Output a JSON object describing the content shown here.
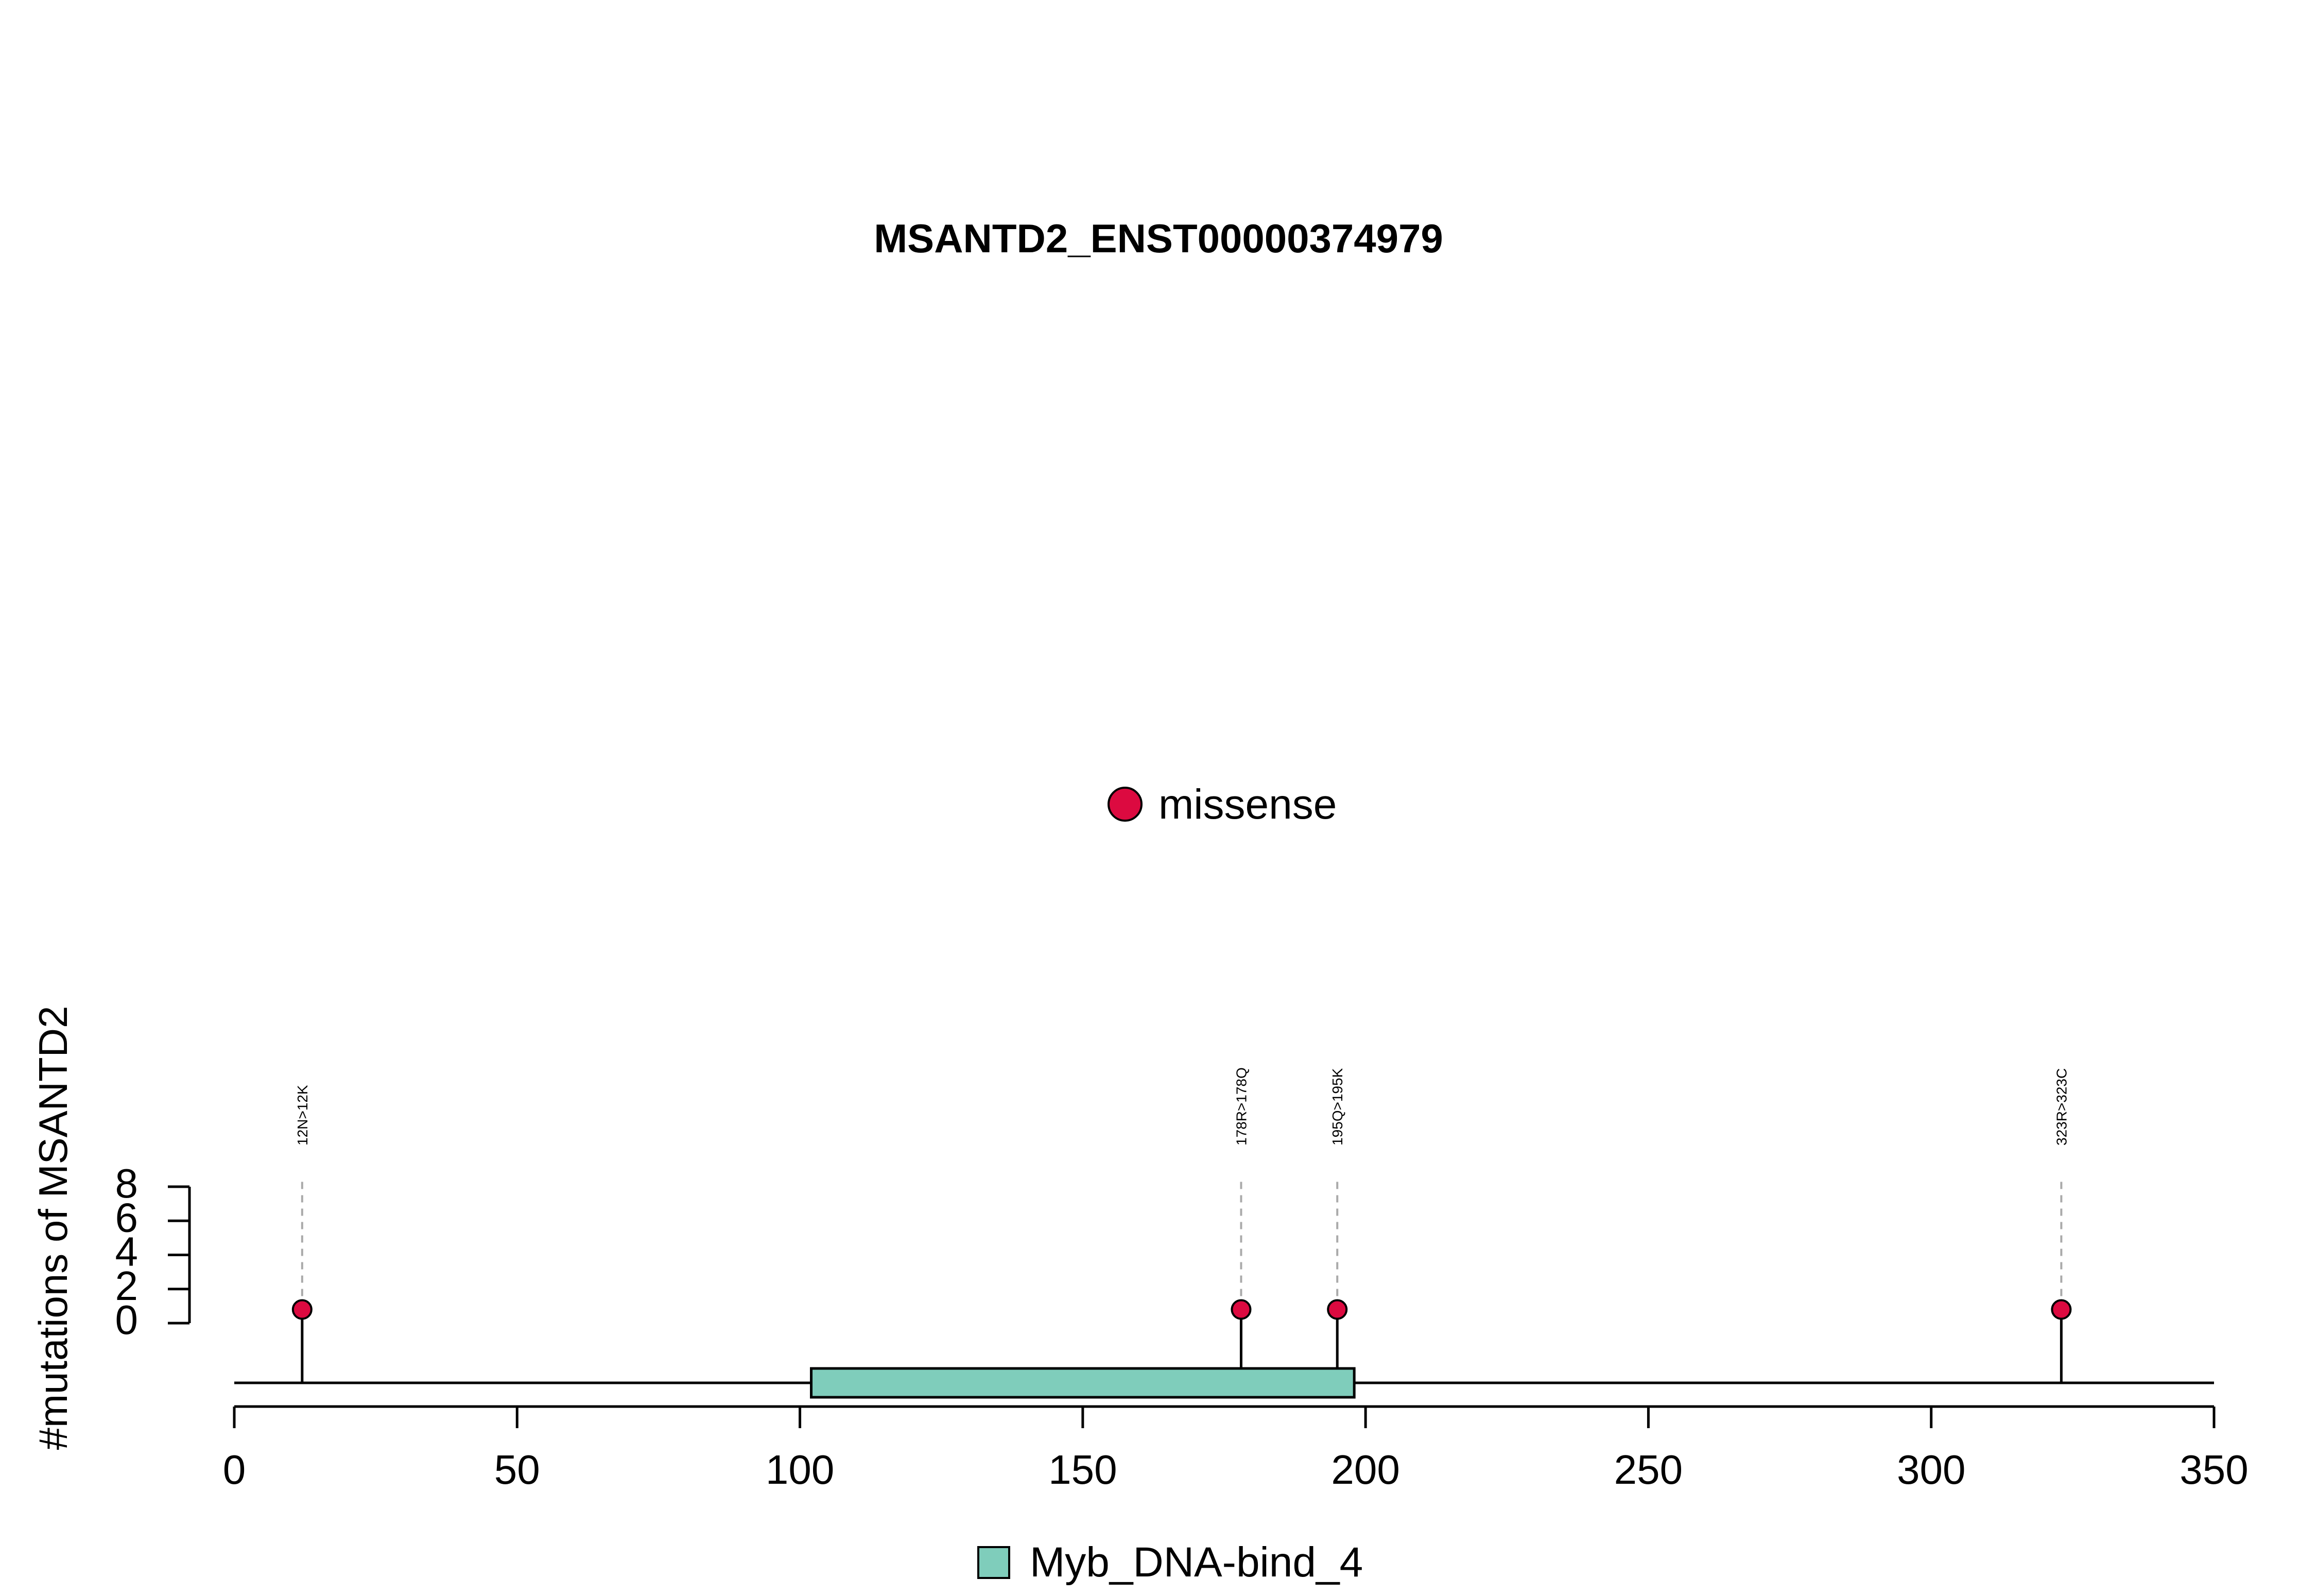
{
  "chart_data": {
    "type": "lollipop",
    "title": "MSANTD2_ENST00000374979",
    "ylabel": "#mutations of MSANTD2",
    "xlabel": "",
    "xlim": [
      0,
      350
    ],
    "x_ticks": [
      0,
      50,
      100,
      150,
      200,
      250,
      300,
      350
    ],
    "ylim": [
      0,
      8
    ],
    "y_ticks": [
      0,
      2,
      4,
      6,
      8
    ],
    "protein_length": 350,
    "legend_top": {
      "label": "missense",
      "color": "#dc0a40"
    },
    "domains": [
      {
        "name": "Myb_DNA-bind_4",
        "start": 102,
        "end": 198,
        "color": "#7fcdbb"
      }
    ],
    "mutations": [
      {
        "position": 12,
        "label": "12N>12K",
        "count": 1,
        "type": "missense"
      },
      {
        "position": 178,
        "label": "178R>178Q",
        "count": 1,
        "type": "missense"
      },
      {
        "position": 195,
        "label": "195Q>195K",
        "count": 1,
        "type": "missense"
      },
      {
        "position": 323,
        "label": "323R>323C",
        "count": 1,
        "type": "missense"
      }
    ],
    "legend_bottom": {
      "label": "Myb_DNA-bind_4",
      "color": "#7fcdbb"
    }
  }
}
